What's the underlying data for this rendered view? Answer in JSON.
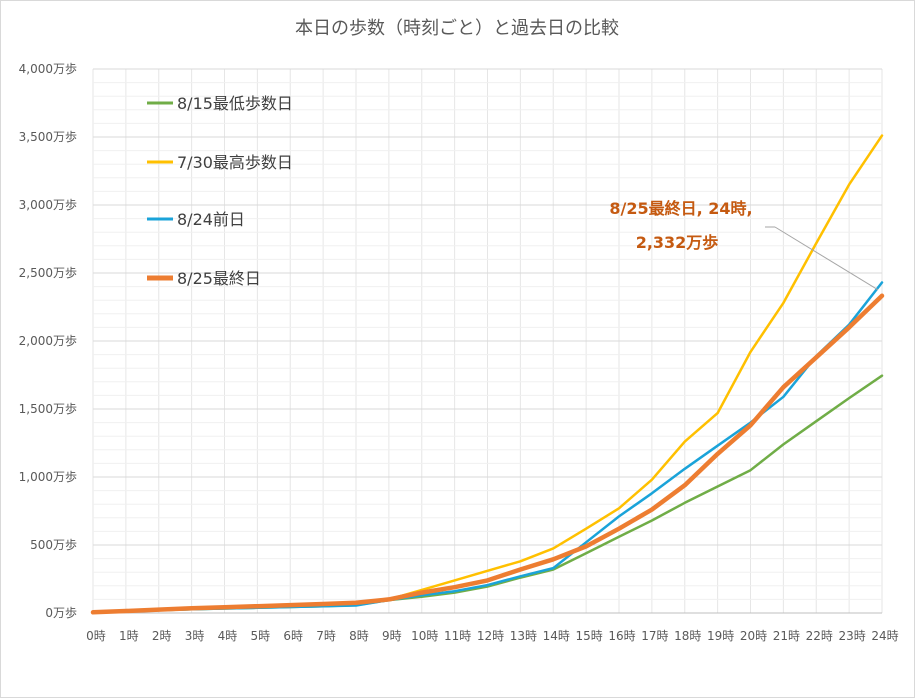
{
  "chart_data": {
    "type": "line",
    "title": "本日の歩数（時刻ごと）と過去日の比較",
    "xlabel": "",
    "ylabel": "",
    "categories": [
      "0時",
      "1時",
      "2時",
      "3時",
      "4時",
      "5時",
      "6時",
      "7時",
      "8時",
      "9時",
      "10時",
      "11時",
      "12時",
      "13時",
      "14時",
      "15時",
      "16時",
      "17時",
      "18時",
      "19時",
      "20時",
      "21時",
      "22時",
      "23時",
      "24時"
    ],
    "y_tick_labels": [
      "0万歩",
      "500万歩",
      "1,000万歩",
      "1,500万歩",
      "2,000万歩",
      "2,500万歩",
      "3,000万歩",
      "3,500万歩",
      "4,000万歩"
    ],
    "ylim": [
      0,
      4000
    ],
    "y_major_step": 500,
    "grid": true,
    "legend_position": "top-left",
    "series": [
      {
        "name": "8/15最低歩数日",
        "color": "#70ad47",
        "width": "normal",
        "values": [
          5,
          12,
          20,
          27,
          33,
          38,
          44,
          50,
          58,
          95,
          120,
          150,
          195,
          260,
          320,
          440,
          560,
          680,
          810,
          930,
          1050,
          1240,
          1410,
          1580,
          1745
        ]
      },
      {
        "name": "7/30最高歩数日",
        "color": "#ffc000",
        "width": "normal",
        "values": [
          5,
          15,
          25,
          33,
          40,
          48,
          56,
          62,
          72,
          100,
          170,
          240,
          310,
          380,
          475,
          620,
          770,
          980,
          1260,
          1470,
          1920,
          2280,
          2720,
          3150,
          3510
        ]
      },
      {
        "name": "8/24前日",
        "color": "#1aa3d9",
        "width": "normal",
        "values": [
          5,
          12,
          20,
          27,
          33,
          38,
          44,
          50,
          55,
          95,
          130,
          160,
          205,
          270,
          330,
          520,
          710,
          880,
          1060,
          1230,
          1400,
          1590,
          1890,
          2120,
          2430
        ]
      },
      {
        "name": "8/25最終日",
        "color": "#ed7d31",
        "width": "thick",
        "values": [
          5,
          15,
          25,
          35,
          42,
          50,
          58,
          66,
          75,
          100,
          150,
          190,
          240,
          320,
          395,
          490,
          620,
          760,
          940,
          1170,
          1380,
          1660,
          1880,
          2100,
          2332
        ]
      }
    ],
    "annotation": {
      "line1": "8/25最終日, 24時,",
      "line2": "2,332万歩",
      "series_index": 3,
      "point_index": 24
    }
  }
}
